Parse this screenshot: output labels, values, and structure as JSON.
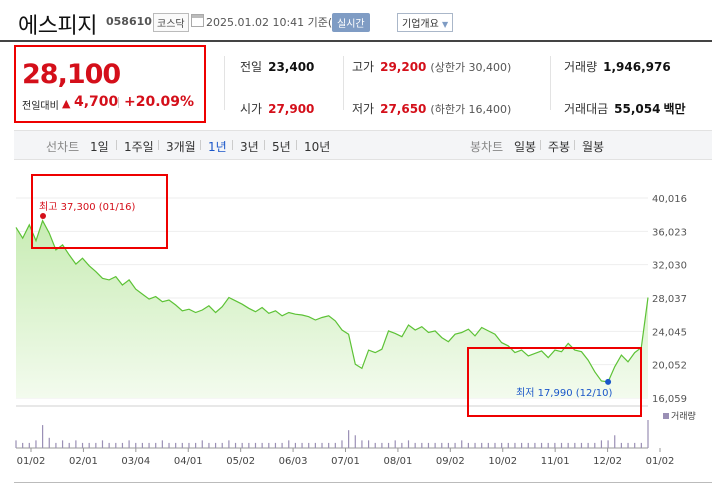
{
  "header": {
    "name": "에스피지",
    "code": "058610",
    "market": "코스닥",
    "datetime": "2025.01.02 10:41 기준(장중)",
    "realtime_label": "실시간",
    "overview_label": "기업개요"
  },
  "price": {
    "current": "28,100",
    "change_label": "전일대비",
    "change_amount": "4,700",
    "change_rate": "+20.09%",
    "direction": "up"
  },
  "stats": {
    "prev_close_label": "전일",
    "prev_close": "23,400",
    "open_label": "시가",
    "open": "27,900",
    "high_label": "고가",
    "high": "29,200",
    "upper_limit": "(상한가 30,400)",
    "low_label": "저가",
    "low": "27,650",
    "lower_limit": "(하한가 16,400)",
    "volume_label": "거래량",
    "volume": "1,946,976",
    "amount_label": "거래대금",
    "amount": "55,054",
    "amount_unit": "백만"
  },
  "tabs": {
    "line_label": "선차트",
    "line": [
      "1일",
      "1주일",
      "3개월",
      "1년",
      "3년",
      "5년",
      "10년"
    ],
    "line_selected": "1년",
    "candle_label": "봉차트",
    "candle": [
      "일봉",
      "주봉",
      "월봉"
    ]
  },
  "chart_data": {
    "type": "area",
    "y_ticks": [
      "40,016",
      "36,023",
      "32,030",
      "28,037",
      "24,045",
      "20,052",
      "16,059"
    ],
    "ylim": [
      16059,
      40016
    ],
    "x_ticks": [
      "01/02",
      "02/01",
      "03/04",
      "04/01",
      "05/02",
      "06/03",
      "07/01",
      "08/01",
      "09/02",
      "10/02",
      "11/01",
      "12/02",
      "01/02"
    ],
    "values": [
      36500,
      35200,
      36800,
      34900,
      37300,
      35800,
      33800,
      34400,
      33200,
      32100,
      32800,
      31900,
      31200,
      30400,
      30200,
      30600,
      29600,
      30200,
      29100,
      28500,
      27900,
      28200,
      27600,
      27800,
      27200,
      26500,
      26700,
      26300,
      26600,
      27100,
      26300,
      27000,
      28100,
      27700,
      27300,
      26800,
      26400,
      26900,
      26200,
      26500,
      25900,
      26300,
      26100,
      26000,
      25800,
      25400,
      25700,
      25900,
      25300,
      24200,
      23700,
      20100,
      19600,
      21800,
      21500,
      21900,
      24100,
      23800,
      23400,
      24800,
      24200,
      24600,
      23900,
      24100,
      23300,
      22800,
      23700,
      23900,
      24300,
      23500,
      24500,
      24100,
      23700,
      22700,
      22300,
      21500,
      21800,
      21100,
      21400,
      21700,
      20900,
      21800,
      21600,
      22600,
      21800,
      21600,
      20600,
      19200,
      18100,
      17990,
      19800,
      21200,
      20400,
      21500,
      22100,
      28100
    ],
    "high_label": "최고 37,300 (01/16)",
    "low_label": "최저 17,990 (12/10)",
    "volume_label": "거래량",
    "volume": [
      3,
      2,
      2,
      3,
      9,
      4,
      2,
      3,
      2,
      3,
      2,
      2,
      2,
      3,
      2,
      2,
      2,
      3,
      2,
      2,
      2,
      2,
      3,
      2,
      2,
      2,
      2,
      2,
      3,
      2,
      2,
      2,
      3,
      2,
      2,
      2,
      2,
      2,
      2,
      2,
      2,
      3,
      2,
      2,
      2,
      2,
      2,
      2,
      2,
      3,
      7,
      5,
      3,
      3,
      2,
      2,
      2,
      3,
      2,
      3,
      2,
      2,
      2,
      2,
      2,
      2,
      2,
      3,
      2,
      2,
      2,
      2,
      2,
      2,
      2,
      2,
      2,
      2,
      2,
      2,
      2,
      2,
      2,
      2,
      2,
      2,
      2,
      2,
      3,
      3,
      5,
      2,
      2,
      2,
      2,
      11
    ],
    "colors": {
      "line": "#5dc236",
      "fill_top": "#c8ecb4",
      "fill_bottom": "#f3fbee",
      "high": "#d40f1a",
      "low": "#1a56c9"
    }
  }
}
